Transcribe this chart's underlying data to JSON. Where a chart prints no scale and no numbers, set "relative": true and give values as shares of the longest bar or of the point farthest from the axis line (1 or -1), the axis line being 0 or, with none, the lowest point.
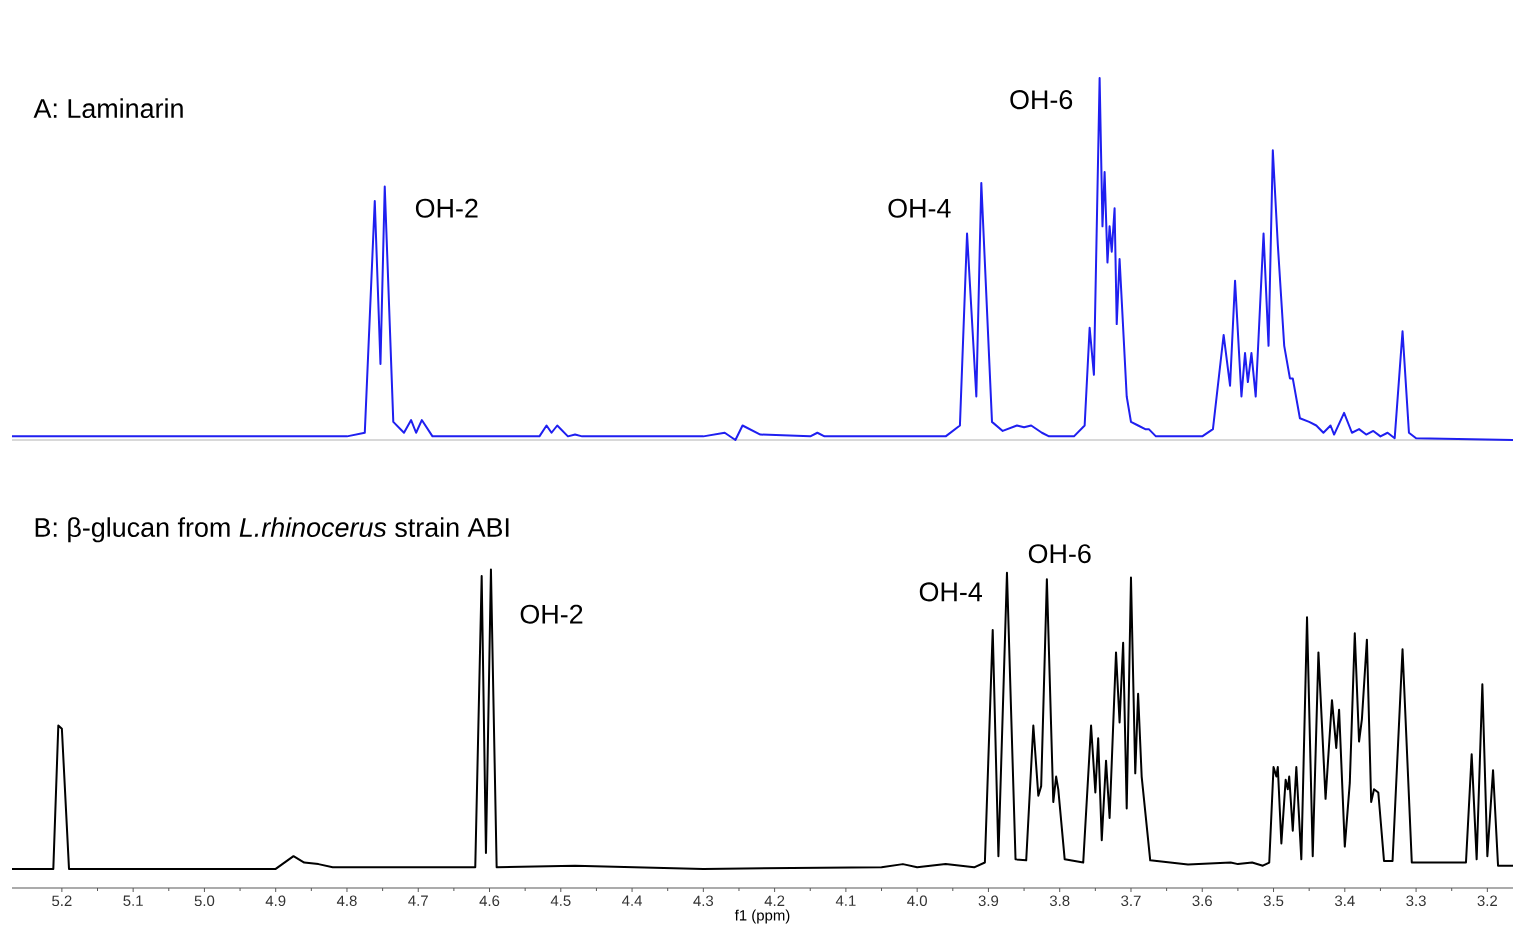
{
  "chart_data": [
    {
      "type": "line",
      "title": "A: Laminarin",
      "relative": true,
      "xlim": [
        5.27,
        3.164
      ],
      "tick_labels": false,
      "x": [
        5.27,
        4.8,
        4.775,
        4.761,
        4.753,
        4.747,
        4.735,
        4.72,
        4.71,
        4.703,
        4.695,
        4.68,
        4.6,
        4.53,
        4.52,
        4.513,
        4.505,
        4.49,
        4.48,
        4.47,
        4.3,
        4.27,
        4.255,
        4.245,
        4.22,
        4.15,
        4.14,
        4.13,
        3.96,
        3.94,
        3.93,
        3.917,
        3.91,
        3.895,
        3.88,
        3.86,
        3.85,
        3.84,
        3.825,
        3.815,
        3.78,
        3.765,
        3.758,
        3.752,
        3.744,
        3.74,
        3.737,
        3.733,
        3.73,
        3.727,
        3.723,
        3.72,
        3.716,
        3.706,
        3.7,
        3.69,
        3.68,
        3.675,
        3.665,
        3.6,
        3.585,
        3.57,
        3.561,
        3.554,
        3.545,
        3.54,
        3.536,
        3.531,
        3.525,
        3.514,
        3.507,
        3.501,
        3.494,
        3.485,
        3.477,
        3.473,
        3.463,
        3.45,
        3.44,
        3.43,
        3.42,
        3.415,
        3.401,
        3.39,
        3.38,
        3.37,
        3.36,
        3.35,
        3.34,
        3.33,
        3.319,
        3.31,
        3.3,
        3.164
      ],
      "series": [
        {
          "color": "#1f1ff0",
          "values": [
            0.01,
            0.01,
            0.02,
            0.66,
            0.21,
            0.7,
            0.05,
            0.02,
            0.055,
            0.02,
            0.055,
            0.01,
            0.01,
            0.01,
            0.04,
            0.02,
            0.04,
            0.01,
            0.015,
            0.01,
            0.01,
            0.02,
            0.0,
            0.04,
            0.015,
            0.01,
            0.02,
            0.01,
            0.01,
            0.04,
            0.57,
            0.12,
            0.71,
            0.05,
            0.025,
            0.04,
            0.035,
            0.04,
            0.02,
            0.01,
            0.01,
            0.04,
            0.31,
            0.18,
            1.0,
            0.59,
            0.74,
            0.49,
            0.59,
            0.52,
            0.64,
            0.32,
            0.5,
            0.12,
            0.05,
            0.04,
            0.03,
            0.03,
            0.01,
            0.01,
            0.03,
            0.29,
            0.15,
            0.44,
            0.12,
            0.24,
            0.16,
            0.24,
            0.12,
            0.57,
            0.26,
            0.8,
            0.54,
            0.26,
            0.17,
            0.17,
            0.06,
            0.05,
            0.04,
            0.02,
            0.04,
            0.015,
            0.075,
            0.02,
            0.03,
            0.015,
            0.025,
            0.01,
            0.02,
            0.005,
            0.3,
            0.02,
            0.005,
            0.0
          ]
        }
      ],
      "annotations": [
        "OH-2",
        "OH-4",
        "OH-6"
      ]
    },
    {
      "type": "line",
      "title": "B: β-glucan from *L.rhinocerus* strain ABI",
      "xlabel": "f1 (ppm)",
      "relative": true,
      "xlim": [
        5.27,
        3.164
      ],
      "xticks": [
        5.2,
        5.1,
        {
          "value": 5.0,
          "label": "5.0"
        },
        4.9,
        4.8,
        4.7,
        4.6,
        4.5,
        4.4,
        4.3,
        4.2,
        4.1,
        {
          "value": 4.0,
          "label": "4.0"
        },
        3.9,
        3.8,
        3.7,
        3.6,
        3.5,
        3.4,
        3.3,
        3.2
      ],
      "x": [
        5.27,
        5.22,
        5.212,
        5.205,
        5.2,
        5.19,
        4.9,
        4.875,
        4.86,
        4.84,
        4.82,
        4.62,
        4.611,
        4.605,
        4.598,
        4.59,
        4.48,
        4.3,
        4.05,
        4.02,
        4.0,
        3.96,
        3.92,
        3.905,
        3.894,
        3.886,
        3.874,
        3.862,
        3.847,
        3.837,
        3.83,
        3.826,
        3.818,
        3.809,
        3.805,
        3.802,
        3.793,
        3.767,
        3.756,
        3.75,
        3.746,
        3.741,
        3.735,
        3.73,
        3.721,
        3.716,
        3.711,
        3.706,
        3.7,
        3.694,
        3.69,
        3.685,
        3.673,
        3.62,
        3.56,
        3.55,
        3.53,
        3.515,
        3.506,
        3.5,
        3.496,
        3.494,
        3.489,
        3.483,
        3.48,
        3.478,
        3.473,
        3.468,
        3.461,
        3.453,
        3.445,
        3.437,
        3.427,
        3.418,
        3.412,
        3.408,
        3.4,
        3.393,
        3.386,
        3.38,
        3.376,
        3.369,
        3.363,
        3.359,
        3.353,
        3.345,
        3.333,
        3.319,
        3.306,
        3.23,
        3.222,
        3.215,
        3.207,
        3.2,
        3.192,
        3.185,
        3.164
      ],
      "series": [
        {
          "color": "#000000",
          "values": [
            0.06,
            0.06,
            0.06,
            0.51,
            0.5,
            0.06,
            0.06,
            0.1,
            0.08,
            0.075,
            0.065,
            0.065,
            0.98,
            0.11,
            1.0,
            0.065,
            0.07,
            0.06,
            0.065,
            0.075,
            0.065,
            0.075,
            0.065,
            0.08,
            0.81,
            0.1,
            0.99,
            0.09,
            0.087,
            0.51,
            0.29,
            0.32,
            0.97,
            0.27,
            0.35,
            0.31,
            0.09,
            0.08,
            0.51,
            0.3,
            0.47,
            0.15,
            0.4,
            0.22,
            0.74,
            0.52,
            0.77,
            0.25,
            0.975,
            0.36,
            0.61,
            0.35,
            0.087,
            0.074,
            0.08,
            0.075,
            0.08,
            0.07,
            0.08,
            0.38,
            0.35,
            0.38,
            0.14,
            0.34,
            0.31,
            0.35,
            0.18,
            0.38,
            0.09,
            0.85,
            0.1,
            0.74,
            0.28,
            0.59,
            0.44,
            0.56,
            0.13,
            0.33,
            0.8,
            0.46,
            0.53,
            0.78,
            0.27,
            0.31,
            0.3,
            0.085,
            0.085,
            0.75,
            0.08,
            0.08,
            0.42,
            0.09,
            0.64,
            0.1,
            0.37,
            0.07,
            0.07
          ]
        }
      ],
      "annotations": [
        "OH-2",
        "OH-4",
        "OH-6"
      ]
    }
  ]
}
